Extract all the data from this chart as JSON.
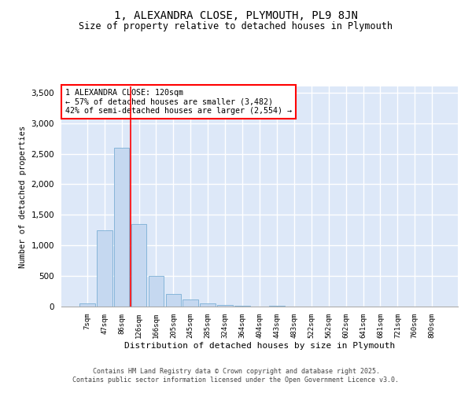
{
  "title": "1, ALEXANDRA CLOSE, PLYMOUTH, PL9 8JN",
  "subtitle": "Size of property relative to detached houses in Plymouth",
  "xlabel": "Distribution of detached houses by size in Plymouth",
  "ylabel": "Number of detached properties",
  "annotation_line1": "1 ALEXANDRA CLOSE: 120sqm",
  "annotation_line2": "← 57% of detached houses are smaller (3,482)",
  "annotation_line3": "42% of semi-detached houses are larger (2,554) →",
  "categories": [
    "7sqm",
    "47sqm",
    "86sqm",
    "126sqm",
    "166sqm",
    "205sqm",
    "245sqm",
    "285sqm",
    "324sqm",
    "364sqm",
    "404sqm",
    "443sqm",
    "483sqm",
    "522sqm",
    "562sqm",
    "602sqm",
    "641sqm",
    "681sqm",
    "721sqm",
    "760sqm",
    "800sqm"
  ],
  "bar_heights": [
    50,
    1250,
    2600,
    1350,
    500,
    200,
    110,
    50,
    20,
    10,
    5,
    10,
    3,
    0,
    0,
    0,
    0,
    0,
    0,
    0,
    0
  ],
  "bar_color": "#c5d8f0",
  "bar_edge_color": "#7bafd4",
  "vline_x_index": 3,
  "vline_color": "red",
  "ylim": [
    0,
    3600
  ],
  "yticks": [
    0,
    500,
    1000,
    1500,
    2000,
    2500,
    3000,
    3500
  ],
  "background_color": "#dde8f8",
  "footer_line1": "Contains HM Land Registry data © Crown copyright and database right 2025.",
  "footer_line2": "Contains public sector information licensed under the Open Government Licence v3.0."
}
